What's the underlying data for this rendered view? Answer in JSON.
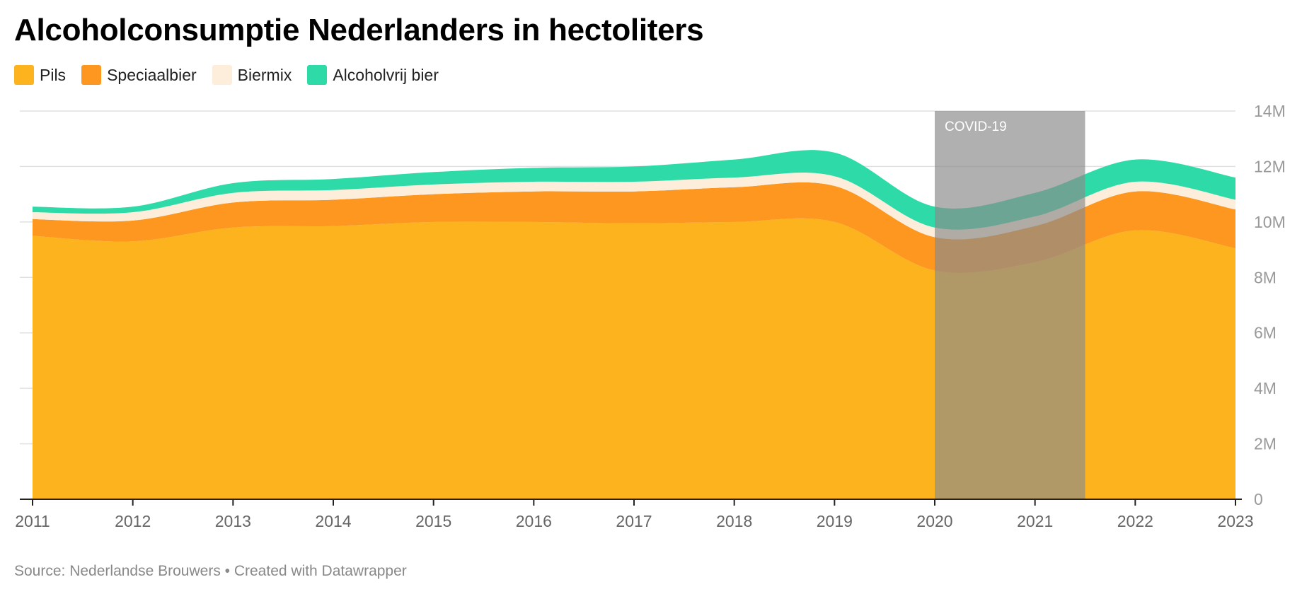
{
  "title": "Alcoholconsumptie Nederlanders in hectoliters",
  "source": "Source: Nederlandse Brouwers • Created with Datawrapper",
  "legend": [
    {
      "label": "Pils",
      "color": "#fdb31e"
    },
    {
      "label": "Speciaalbier",
      "color": "#fd9720"
    },
    {
      "label": "Biermix",
      "color": "#fdeedb"
    },
    {
      "label": "Alcoholvrij bier",
      "color": "#2edba8"
    }
  ],
  "annotation": "COVID-19",
  "chart_data": {
    "type": "area",
    "stacked": true,
    "x": [
      2011,
      2012,
      2013,
      2014,
      2015,
      2016,
      2017,
      2018,
      2019,
      2020,
      2021,
      2022,
      2023
    ],
    "series": [
      {
        "name": "Pils",
        "color": "#fdb31e",
        "values": [
          9500000,
          9300000,
          9800000,
          9850000,
          10000000,
          10000000,
          9950000,
          10000000,
          10000000,
          8250000,
          8550000,
          9700000,
          9050000
        ]
      },
      {
        "name": "Speciaalbier",
        "color": "#fd9720",
        "values": [
          600000,
          750000,
          900000,
          950000,
          1000000,
          1100000,
          1150000,
          1250000,
          1300000,
          1200000,
          1300000,
          1400000,
          1400000
        ]
      },
      {
        "name": "Biermix",
        "color": "#fdeedb",
        "values": [
          250000,
          300000,
          350000,
          350000,
          350000,
          350000,
          350000,
          350000,
          350000,
          350000,
          350000,
          350000,
          350000
        ]
      },
      {
        "name": "Alcoholvrij bier",
        "color": "#2edba8",
        "values": [
          200000,
          200000,
          350000,
          400000,
          450000,
          500000,
          550000,
          650000,
          850000,
          750000,
          850000,
          800000,
          800000
        ]
      }
    ],
    "ylim": [
      0,
      14000000
    ],
    "yticks": [
      0,
      2000000,
      4000000,
      6000000,
      8000000,
      10000000,
      12000000,
      14000000
    ],
    "ytick_labels": [
      "0",
      "2M",
      "4M",
      "6M",
      "8M",
      "10M",
      "12M",
      "14M"
    ],
    "xtick_labels": [
      "2011",
      "2012",
      "2013",
      "2014",
      "2015",
      "2016",
      "2017",
      "2018",
      "2019",
      "2020",
      "2021",
      "2022",
      "2023"
    ],
    "grid": true,
    "legend_position": "top-left",
    "highlight_range": {
      "label": "COVID-19",
      "from": 2020,
      "to": 2021.5
    }
  }
}
